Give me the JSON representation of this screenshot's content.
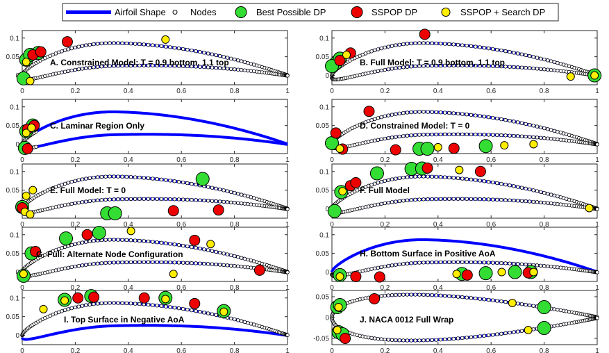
{
  "figure": {
    "legend": {
      "placement": "top-center",
      "entries": [
        {
          "key": "shape",
          "label": "Airfoil Shape"
        },
        {
          "key": "nodes",
          "label": "Nodes"
        },
        {
          "key": "best",
          "label": "Best Possible DP"
        },
        {
          "key": "sspop",
          "label": "SSPOP DP"
        },
        {
          "key": "search",
          "label": "SSPOP + Search DP"
        }
      ]
    },
    "colors": {
      "shape": "#0000ff",
      "node_fill": "#ffffff",
      "node_edge": "#000000",
      "best": "#33dd33",
      "sspop": "#ee0000",
      "search": "#ffee00",
      "axis": "#262626"
    }
  },
  "chart_data": [
    {
      "type": "scatter",
      "title": "A. Constrained Model: T = 0.9 bottom, 1.1 top",
      "xlim": [
        0,
        1
      ],
      "ylim": [
        -0.025,
        0.12
      ],
      "xticks": [
        0,
        0.2,
        0.4,
        0.6,
        0.8,
        1
      ],
      "yticks": [
        0,
        0.05,
        0.1
      ],
      "xtick_labels": [
        "0",
        "0.2",
        "0.4",
        "0.6",
        "0.8",
        "1"
      ],
      "ytick_labels": [
        "0",
        "0.05",
        "0.1"
      ],
      "airfoil": "cambered",
      "nodes_side": "all",
      "grid": false,
      "best": [
        [
          0.015,
          0.042
        ],
        [
          0.03,
          0.055
        ],
        [
          0.06,
          0.06
        ],
        [
          0.005,
          -0.008
        ]
      ],
      "sspop": [
        [
          0.04,
          0.055
        ],
        [
          0.07,
          0.063
        ],
        [
          0.17,
          0.09
        ]
      ],
      "search": [
        [
          0.015,
          0.036
        ],
        [
          0.54,
          0.096
        ],
        [
          0.03,
          -0.015
        ]
      ]
    },
    {
      "type": "scatter",
      "title": "B. Full Model: T = 0.9 bottom, 1.1 top",
      "xlim": [
        0,
        1
      ],
      "ylim": [
        -0.025,
        0.12
      ],
      "xticks": [
        0,
        0.2,
        0.4,
        0.6,
        0.8,
        1
      ],
      "yticks": [
        0,
        0.05,
        0.1
      ],
      "xtick_labels": [
        "0",
        "0.2",
        "0.4",
        "0.6",
        "0.8",
        "1"
      ],
      "ytick_labels": [
        "0",
        "0.05",
        "0.1"
      ],
      "airfoil": "cambered",
      "nodes_side": "all",
      "grid": false,
      "best": [
        [
          0.015,
          0.033
        ],
        [
          0.03,
          0.045
        ],
        [
          0.0,
          0.025
        ],
        [
          0.99,
          0.0
        ]
      ],
      "sspop": [
        [
          0.03,
          0.04
        ],
        [
          0.07,
          0.06
        ],
        [
          0.35,
          0.11
        ]
      ],
      "search": [
        [
          0.055,
          0.055
        ],
        [
          0.99,
          0.0
        ],
        [
          0.9,
          -0.003
        ]
      ]
    },
    {
      "type": "scatter",
      "title": "C. Laminar Region Only",
      "xlim": [
        0,
        1
      ],
      "ylim": [
        -0.025,
        0.12
      ],
      "xticks": [
        0,
        0.2,
        0.4,
        0.6,
        0.8,
        1
      ],
      "yticks": [
        0,
        0.05,
        0.1
      ],
      "xtick_labels": [
        "0",
        "0.2",
        "0.4",
        "0.6",
        "0.8",
        "1"
      ],
      "ytick_labels": [
        "0",
        "0.05",
        "0.1"
      ],
      "airfoil": "cambered",
      "nodes_side": "front",
      "grid": false,
      "best": [
        [
          0.015,
          0.035
        ],
        [
          0.04,
          0.05
        ],
        [
          0.01,
          -0.01
        ]
      ],
      "sspop": [
        [
          0.02,
          0.04
        ],
        [
          0.045,
          0.05
        ],
        [
          0.02,
          -0.012
        ]
      ],
      "search": [
        [
          0.015,
          0.03
        ],
        [
          0.035,
          0.044
        ]
      ]
    },
    {
      "type": "scatter",
      "title": "D. Constrained Model: T = 0",
      "xlim": [
        0,
        1
      ],
      "ylim": [
        -0.025,
        0.12
      ],
      "xticks": [
        0,
        0.2,
        0.4,
        0.6,
        0.8,
        1
      ],
      "yticks": [
        0,
        0.05,
        0.1
      ],
      "xtick_labels": [
        "0",
        "0.2",
        "0.4",
        "0.6",
        "0.8",
        "1"
      ],
      "ytick_labels": [
        "0",
        "0.05",
        "0.1"
      ],
      "airfoil": "cambered",
      "nodes_side": "all",
      "grid": false,
      "best": [
        [
          0.0,
          0.003
        ],
        [
          0.33,
          -0.012
        ],
        [
          0.36,
          -0.012
        ],
        [
          0.58,
          -0.005
        ]
      ],
      "sspop": [
        [
          0.015,
          0.03
        ],
        [
          0.14,
          0.088
        ],
        [
          0.04,
          -0.013
        ],
        [
          0.24,
          -0.015
        ],
        [
          0.46,
          -0.011
        ]
      ],
      "search": [
        [
          0.03,
          -0.012
        ],
        [
          0.4,
          -0.008
        ],
        [
          0.65,
          -0.003
        ],
        [
          0.76,
          0.0
        ]
      ]
    },
    {
      "type": "scatter",
      "title": "E. Full Model: T = 0",
      "xlim": [
        0,
        1
      ],
      "ylim": [
        -0.025,
        0.12
      ],
      "xticks": [
        0,
        0.2,
        0.4,
        0.6,
        0.8,
        1
      ],
      "yticks": [
        0,
        0.05,
        0.1
      ],
      "xtick_labels": [
        "0",
        "0.2",
        "0.4",
        "0.6",
        "0.8",
        "1"
      ],
      "ytick_labels": [
        "0",
        "0.05",
        "0.1"
      ],
      "airfoil": "cambered",
      "nodes_side": "all",
      "grid": false,
      "best": [
        [
          0.0,
          0.005
        ],
        [
          0.68,
          0.08
        ],
        [
          0.32,
          -0.012
        ],
        [
          0.35,
          -0.012
        ]
      ],
      "sspop": [
        [
          0.0,
          0.003
        ],
        [
          0.57,
          -0.005
        ],
        [
          0.74,
          -0.003
        ]
      ],
      "search": [
        [
          0.015,
          0.035
        ],
        [
          0.04,
          0.05
        ],
        [
          0.01,
          -0.008
        ],
        [
          0.03,
          -0.015
        ]
      ]
    },
    {
      "type": "scatter",
      "title": "F. Full Model",
      "xlim": [
        0,
        1
      ],
      "ylim": [
        -0.025,
        0.12
      ],
      "xticks": [
        0,
        0.2,
        0.4,
        0.6,
        0.8,
        1
      ],
      "yticks": [
        0,
        0.05,
        0.1
      ],
      "xtick_labels": [
        "0",
        "0.2",
        "0.4",
        "0.6",
        "0.8",
        "1"
      ],
      "ytick_labels": [
        "0",
        "0.05",
        "0.1"
      ],
      "airfoil": "cambered",
      "nodes_side": "all",
      "grid": false,
      "best": [
        [
          0.035,
          0.045
        ],
        [
          0.17,
          0.095
        ],
        [
          0.3,
          0.107
        ],
        [
          0.34,
          0.108
        ],
        [
          0.01,
          -0.006
        ]
      ],
      "sspop": [
        [
          0.07,
          0.062
        ],
        [
          0.09,
          0.07
        ],
        [
          0.36,
          0.109
        ],
        [
          0.56,
          0.1
        ]
      ],
      "search": [
        [
          0.04,
          0.047
        ],
        [
          0.48,
          0.104
        ],
        [
          0.97,
          0.002
        ]
      ]
    },
    {
      "type": "scatter",
      "title": "G. Full: Alternate Node Configuration",
      "xlim": [
        0,
        1
      ],
      "ylim": [
        -0.025,
        0.12
      ],
      "xticks": [
        0,
        0.2,
        0.4,
        0.6,
        0.8,
        1
      ],
      "yticks": [
        0,
        0.05,
        0.1
      ],
      "xtick_labels": [
        "0",
        "0.2",
        "0.4",
        "0.6",
        "0.8",
        "1"
      ],
      "ytick_labels": [
        "0",
        "0.05",
        "0.1"
      ],
      "airfoil": "cambered",
      "nodes_side": "all",
      "grid": false,
      "best": [
        [
          0.035,
          0.05
        ],
        [
          0.165,
          0.09
        ],
        [
          0.29,
          0.105
        ],
        [
          0.005,
          -0.01
        ]
      ],
      "sspop": [
        [
          0.05,
          0.055
        ],
        [
          0.245,
          0.1
        ],
        [
          0.65,
          0.085
        ],
        [
          0.895,
          0.005
        ]
      ],
      "search": [
        [
          0.41,
          0.11
        ],
        [
          0.71,
          0.075
        ],
        [
          0.57,
          -0.005
        ],
        [
          0.005,
          -0.005
        ]
      ]
    },
    {
      "type": "scatter",
      "title": "H. Bottom Surface in Positive AoA",
      "xlim": [
        0,
        1
      ],
      "ylim": [
        -0.025,
        0.12
      ],
      "xticks": [
        0,
        0.2,
        0.4,
        0.6,
        0.8,
        1
      ],
      "yticks": [
        0,
        0.05,
        0.1
      ],
      "xtick_labels": [
        "0",
        "0.2",
        "0.4",
        "0.6",
        "0.8",
        "1"
      ],
      "ytick_labels": [
        "0",
        "0.05",
        "0.1"
      ],
      "airfoil": "cambered",
      "nodes_side": "bottom",
      "grid": false,
      "best": [
        [
          0.03,
          -0.008
        ],
        [
          0.49,
          -0.005
        ],
        [
          0.58,
          -0.003
        ],
        [
          0.69,
          0.0
        ],
        [
          0.75,
          0.0
        ]
      ],
      "sspop": [
        [
          0.09,
          -0.012
        ],
        [
          0.18,
          -0.013
        ],
        [
          0.51,
          -0.008
        ],
        [
          0.74,
          -0.002
        ]
      ],
      "search": [
        [
          0.03,
          -0.012
        ],
        [
          0.47,
          -0.005
        ],
        [
          0.64,
          0.0
        ],
        [
          0.76,
          0.0
        ]
      ]
    },
    {
      "type": "scatter",
      "title": "I. Top Surface in Negative AoA",
      "xlim": [
        0,
        1
      ],
      "ylim": [
        -0.025,
        0.12
      ],
      "xticks": [
        0,
        0.2,
        0.4,
        0.6,
        0.8,
        1
      ],
      "yticks": [
        0,
        0.05,
        0.1
      ],
      "xtick_labels": [
        "0",
        "0.2",
        "0.4",
        "0.6",
        "0.8",
        "1"
      ],
      "ytick_labels": [
        "0",
        "0.05",
        "0.1"
      ],
      "airfoil": "cambered",
      "nodes_side": "top",
      "grid": false,
      "best": [
        [
          0.16,
          0.095
        ],
        [
          0.26,
          0.105
        ],
        [
          0.54,
          0.1
        ],
        [
          0.76,
          0.065
        ]
      ],
      "sspop": [
        [
          0.21,
          0.1
        ],
        [
          0.27,
          0.102
        ],
        [
          0.46,
          0.1
        ],
        [
          0.65,
          0.085
        ]
      ],
      "search": [
        [
          0.08,
          0.07
        ],
        [
          0.16,
          0.093
        ],
        [
          0.54,
          0.097
        ],
        [
          0.76,
          0.063
        ]
      ]
    },
    {
      "type": "scatter",
      "title": "J. NACA 0012 Full Wrap",
      "xlim": [
        0,
        1
      ],
      "ylim": [
        -0.065,
        0.065
      ],
      "xticks": [
        0,
        0.2,
        0.4,
        0.6,
        0.8,
        1
      ],
      "yticks": [
        -0.05,
        0,
        0.05
      ],
      "xtick_labels": [
        "0",
        "0.2",
        "0.4",
        "0.6",
        "0.8",
        "1"
      ],
      "ytick_labels": [
        "-0.05",
        "0",
        "0.05"
      ],
      "airfoil": "symmetric",
      "nodes_side": "all",
      "grid": false,
      "best": [
        [
          0.02,
          0.025
        ],
        [
          0.03,
          0.03
        ],
        [
          0.8,
          0.025
        ],
        [
          0.8,
          -0.025
        ],
        [
          0.025,
          -0.035
        ],
        [
          0.04,
          -0.04
        ]
      ],
      "sspop": [
        [
          0.16,
          0.045
        ],
        [
          0.05,
          -0.05
        ]
      ],
      "search": [
        [
          0.025,
          0.025
        ],
        [
          0.68,
          0.035
        ],
        [
          0.02,
          -0.03
        ],
        [
          0.74,
          -0.03
        ]
      ]
    }
  ]
}
